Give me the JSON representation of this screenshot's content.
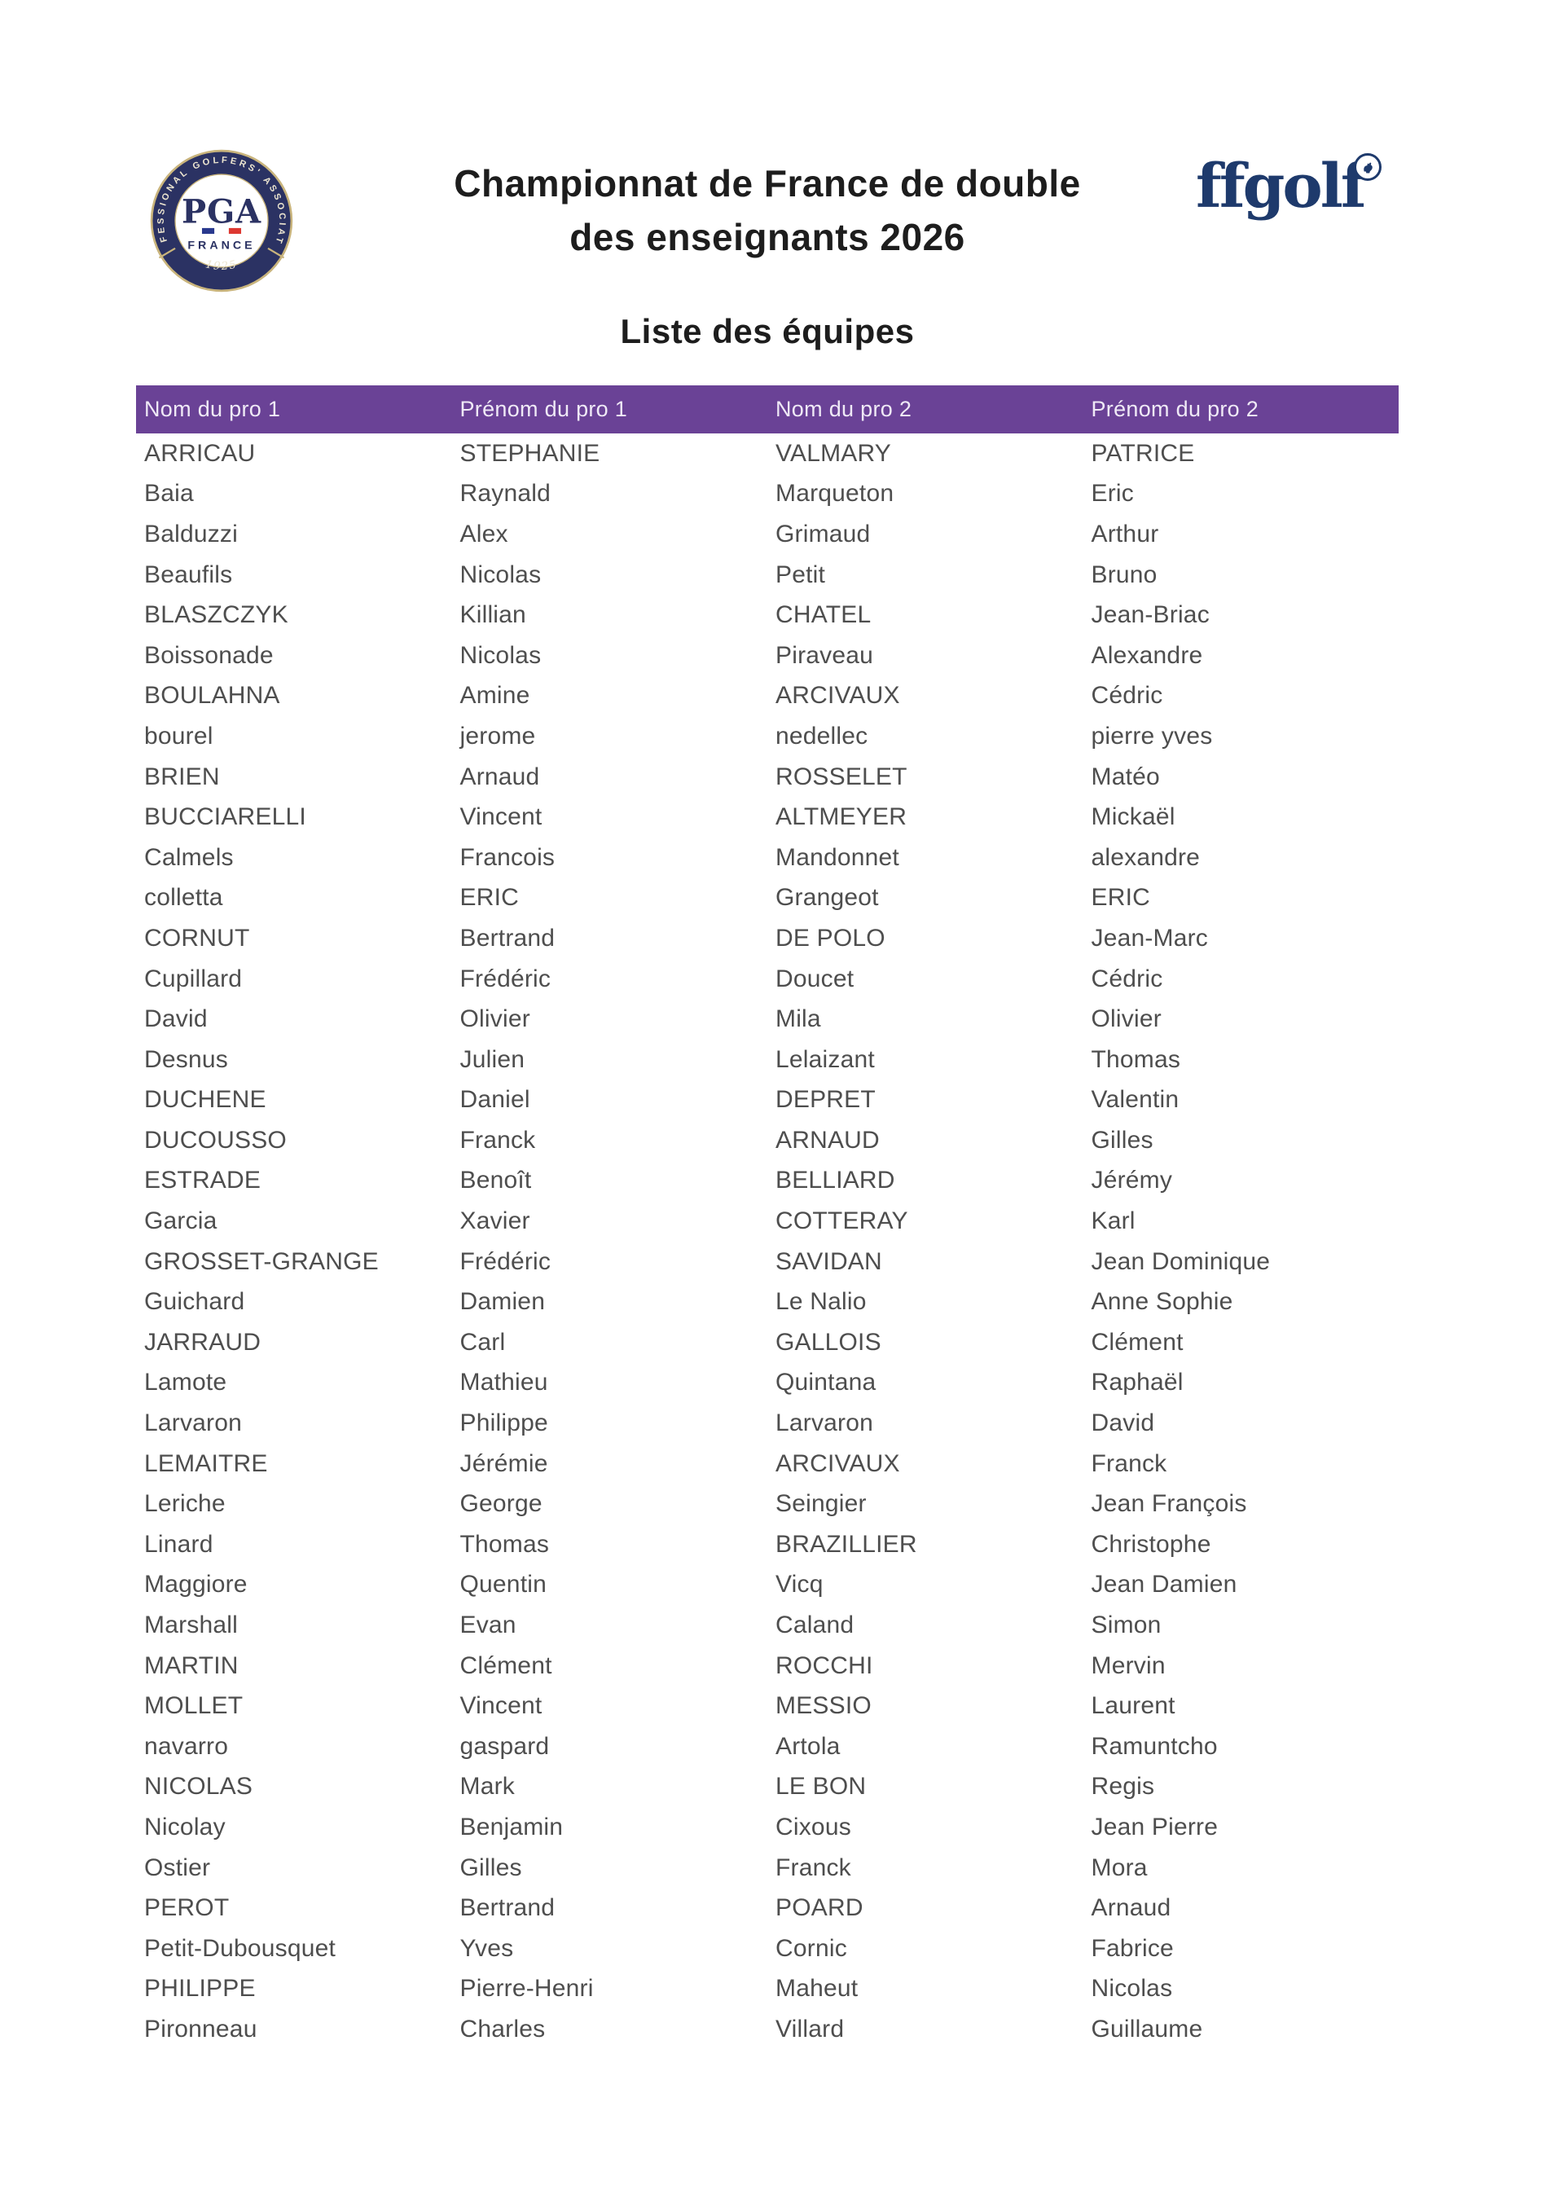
{
  "header": {
    "title_line1": "Championnat de France de double",
    "title_line2": "des enseignants 2026",
    "subtitle": "Liste des équipes"
  },
  "logos": {
    "pga": {
      "ring_text": "PROFESSIONAL GOLFERS' ASSOCIATION",
      "year": "1925",
      "acronym": "PGA",
      "country": "FRANCE",
      "navy": "#2b3263",
      "gold": "#c9b47c",
      "flag_blue": "#29398e",
      "flag_red": "#dd3831"
    },
    "ffgolf": {
      "wordmark": "ffgolf",
      "navy": "#1e3a6c"
    }
  },
  "table": {
    "header_bg": "#6a4296",
    "header_text_color": "#efe9f6",
    "row_text_color": "#4e4e4e",
    "columns": [
      "Nom du pro 1",
      "Prénom du pro 1",
      "Nom du pro 2",
      "Prénom du pro 2"
    ],
    "rows": [
      [
        "ARRICAU",
        "STEPHANIE",
        "VALMARY",
        "PATRICE"
      ],
      [
        "Baia",
        "Raynald",
        "Marqueton",
        "Eric"
      ],
      [
        "Balduzzi",
        "Alex",
        "Grimaud",
        "Arthur"
      ],
      [
        "Beaufils",
        "Nicolas",
        "Petit",
        "Bruno"
      ],
      [
        "BLASZCZYK",
        "Killian",
        "CHATEL",
        "Jean-Briac"
      ],
      [
        "Boissonade",
        "Nicolas",
        "Piraveau",
        "Alexandre"
      ],
      [
        "BOULAHNA",
        "Amine",
        "ARCIVAUX",
        "Cédric"
      ],
      [
        "bourel",
        "jerome",
        "nedellec",
        "pierre yves"
      ],
      [
        "BRIEN",
        "Arnaud",
        "ROSSELET",
        "Matéo"
      ],
      [
        "BUCCIARELLI",
        "Vincent",
        "ALTMEYER",
        "Mickaël"
      ],
      [
        "Calmels",
        "Francois",
        "Mandonnet",
        "alexandre"
      ],
      [
        "colletta",
        "ERIC",
        "Grangeot",
        "ERIC"
      ],
      [
        "CORNUT",
        "Bertrand",
        "DE POLO",
        "Jean-Marc"
      ],
      [
        "Cupillard",
        "Frédéric",
        "Doucet",
        "Cédric"
      ],
      [
        "David",
        "Olivier",
        "Mila",
        "Olivier"
      ],
      [
        "Desnus",
        "Julien",
        "Lelaizant",
        "Thomas"
      ],
      [
        "DUCHENE",
        "Daniel",
        "DEPRET",
        "Valentin"
      ],
      [
        "DUCOUSSO",
        "Franck",
        "ARNAUD",
        "Gilles"
      ],
      [
        "ESTRADE",
        "Benoît",
        "BELLIARD",
        "Jérémy"
      ],
      [
        "Garcia",
        "Xavier",
        "COTTERAY",
        "Karl"
      ],
      [
        "GROSSET-GRANGE",
        "Frédéric",
        "SAVIDAN",
        "Jean Dominique"
      ],
      [
        "Guichard",
        "Damien",
        "Le Nalio",
        "Anne Sophie"
      ],
      [
        "JARRAUD",
        "Carl",
        "GALLOIS",
        "Clément"
      ],
      [
        "Lamote",
        "Mathieu",
        "Quintana",
        "Raphaël"
      ],
      [
        "Larvaron",
        "Philippe",
        "Larvaron",
        "David"
      ],
      [
        "LEMAITRE",
        "Jérémie",
        "ARCIVAUX",
        "Franck"
      ],
      [
        "Leriche",
        "George",
        "Seingier",
        "Jean François"
      ],
      [
        "Linard",
        "Thomas",
        "BRAZILLIER",
        "Christophe"
      ],
      [
        "Maggiore",
        "Quentin",
        "Vicq",
        "Jean Damien"
      ],
      [
        "Marshall",
        "Evan",
        "Caland",
        "Simon"
      ],
      [
        "MARTIN",
        "Clément",
        "ROCCHI",
        "Mervin"
      ],
      [
        "MOLLET",
        "Vincent",
        "MESSIO",
        "Laurent"
      ],
      [
        "navarro",
        "gaspard",
        "Artola",
        "Ramuntcho"
      ],
      [
        "NICOLAS",
        "Mark",
        "LE BON",
        "Regis"
      ],
      [
        "Nicolay",
        "Benjamin",
        "Cixous",
        "Jean Pierre"
      ],
      [
        "Ostier",
        "Gilles",
        "Franck",
        "Mora"
      ],
      [
        "PEROT",
        "Bertrand",
        "POARD",
        "Arnaud"
      ],
      [
        "Petit-Dubousquet",
        "Yves",
        "Cornic",
        "Fabrice"
      ],
      [
        "PHILIPPE",
        "Pierre-Henri",
        "Maheut",
        "Nicolas"
      ],
      [
        "Pironneau",
        "Charles",
        "Villard",
        "Guillaume"
      ]
    ]
  }
}
